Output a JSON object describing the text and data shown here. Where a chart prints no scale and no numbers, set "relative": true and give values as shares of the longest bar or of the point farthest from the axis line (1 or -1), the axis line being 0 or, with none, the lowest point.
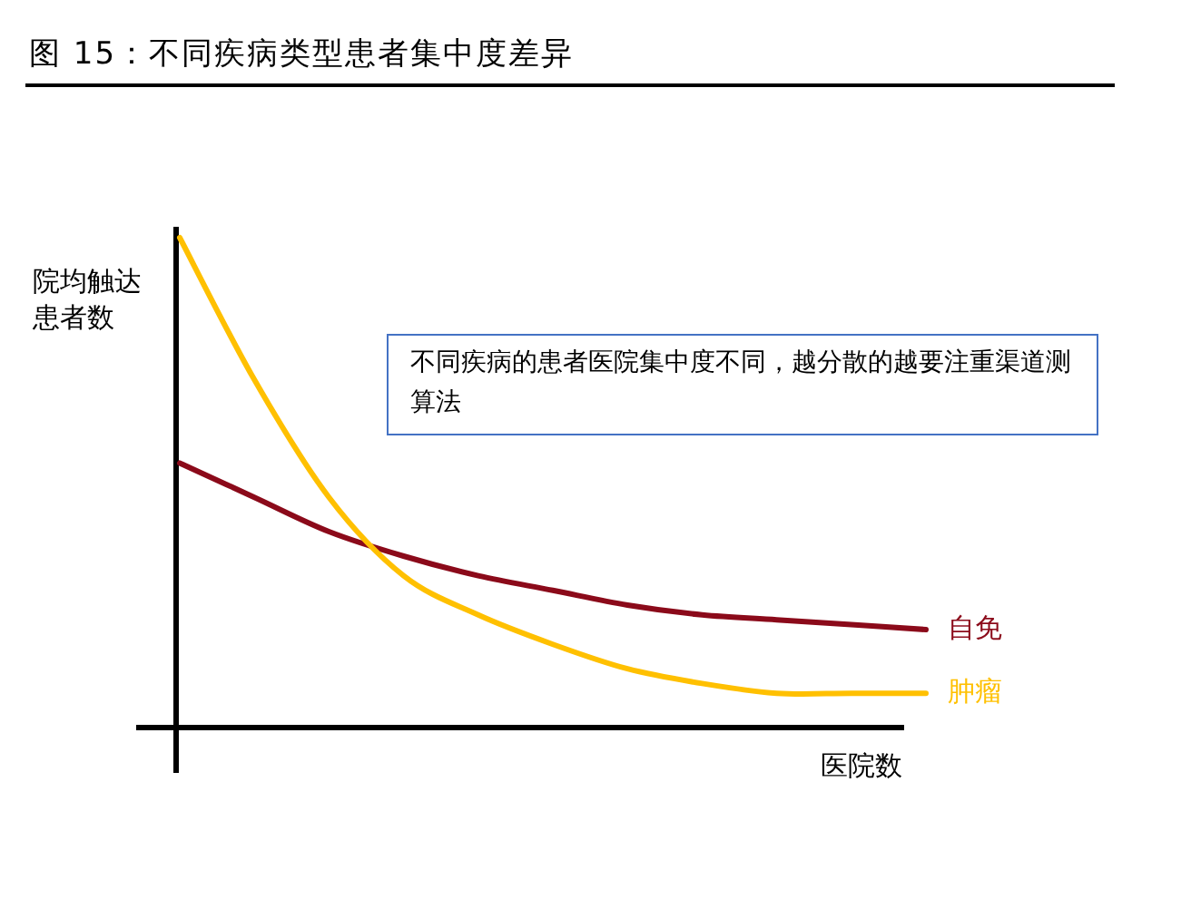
{
  "chart_data": {
    "type": "line",
    "title": "图 15：不同疾病类型患者集中度差异",
    "xlabel": "医院数",
    "ylabel": "院均触达患者数",
    "relative": true,
    "legend": false,
    "categories": [
      null,
      null,
      null,
      null,
      null,
      null,
      null,
      null,
      null,
      null,
      null
    ],
    "series": [
      {
        "name": "自免",
        "color": "#8b0a1a",
        "values": [
          0.54,
          0.47,
          0.4,
          0.35,
          0.31,
          0.28,
          0.25,
          0.23,
          0.22,
          0.21,
          0.2
        ]
      },
      {
        "name": "肿瘤",
        "color": "#ffc000",
        "values": [
          1.0,
          0.71,
          0.47,
          0.31,
          0.23,
          0.17,
          0.12,
          0.09,
          0.07,
          0.07,
          0.07
        ]
      }
    ],
    "annotations": [
      "不同疾病的患者医院集中度不同，越分散的越要注重渠道测算法"
    ]
  }
}
